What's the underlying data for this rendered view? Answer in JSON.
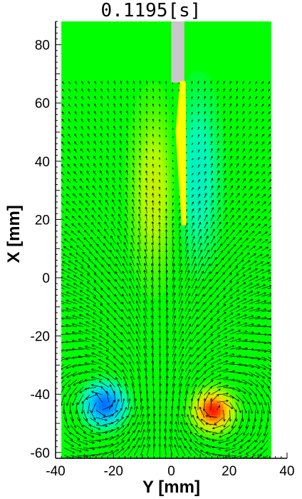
{
  "chart_data": {
    "type": "heatmap",
    "title": "0.1195[s]",
    "xlabel": "Y [mm]",
    "ylabel": "X [mm]",
    "xlim": [
      -40,
      40
    ],
    "ylim": [
      -62,
      88
    ],
    "data_extent_y": [
      -38,
      35
    ],
    "data_extent_x": [
      -62,
      88
    ],
    "xticks": [
      -40,
      -20,
      0,
      20,
      40
    ],
    "yticks": [
      -60,
      -40,
      -20,
      0,
      20,
      40,
      60,
      80
    ],
    "background_level": 0,
    "vortices": [
      {
        "name": "left vortex",
        "y": -23,
        "x": -43.5,
        "strength": -1.0,
        "sense": "counterclockwise"
      },
      {
        "name": "right vortex",
        "y": 14.5,
        "x": -45.5,
        "strength": 1.0,
        "sense": "clockwise"
      }
    ],
    "wake_regions": [
      {
        "y": -6,
        "x": 30,
        "level": 0.35
      },
      {
        "y": 9,
        "x": 35,
        "level": -0.3
      }
    ],
    "wing": {
      "holder": {
        "y0": 0,
        "y1": 4.5,
        "x_top": 88,
        "x_bottom": 67
      },
      "plate": [
        [
          3,
          67.5
        ],
        [
          5,
          67.5
        ],
        [
          5.2,
          18
        ],
        [
          3.6,
          18
        ],
        [
          1.5,
          50
        ]
      ]
    },
    "colors": {
      "background": "#00ff00",
      "negative": "#0080ff",
      "positive": "#ff2000",
      "holder": "#c8c8c8",
      "wing": "#ffff00",
      "vectors": "#000000"
    }
  }
}
